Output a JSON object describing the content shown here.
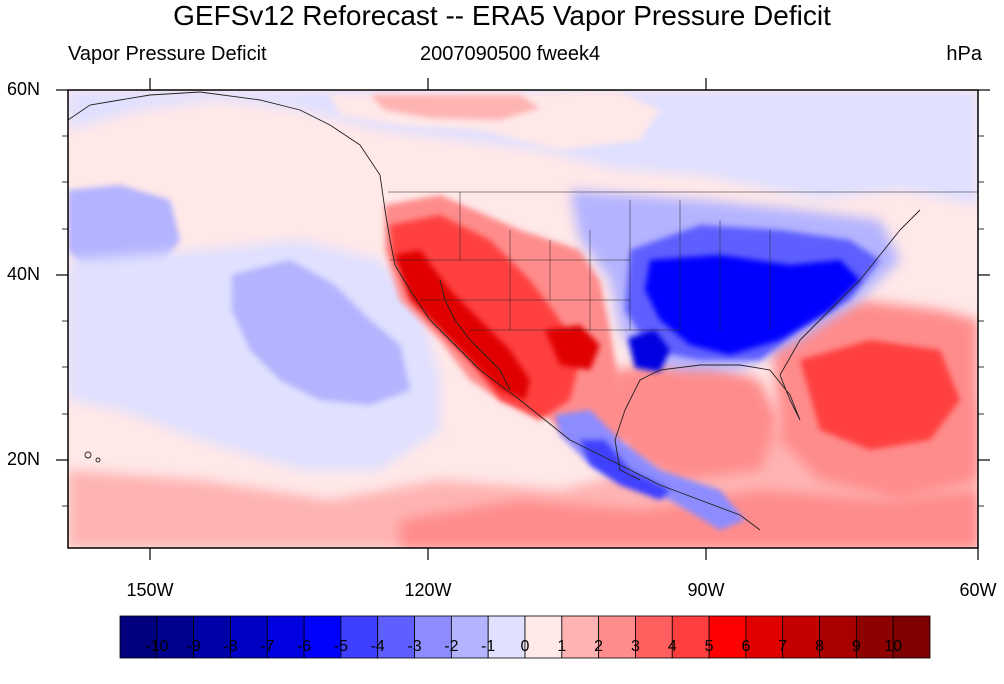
{
  "title": "GEFSv12 Reforecast -- ERA5 Vapor Pressure Deficit",
  "subtitle_left": "Vapor Pressure Deficit",
  "subtitle_center": "2007090500 fweek4",
  "subtitle_right": "hPa",
  "lat_labels": [
    "60N",
    "40N",
    "20N"
  ],
  "lon_labels": [
    "150W",
    "120W",
    "90W",
    "60W"
  ],
  "colorbar": {
    "labels": [
      "-10",
      "-9",
      "-8",
      "-7",
      "-6",
      "-5",
      "-4",
      "-3",
      "-2",
      "-1",
      "0",
      "1",
      "2",
      "3",
      "4",
      "5",
      "6",
      "7",
      "8",
      "9",
      "10"
    ],
    "colors": [
      "#00007f",
      "#00008f",
      "#0000a8",
      "#0000c4",
      "#0000e0",
      "#0000ff",
      "#3f3fff",
      "#5f5fff",
      "#8c8cff",
      "#b3b3ff",
      "#e0e0ff",
      "#ffe8e8",
      "#ffb3b3",
      "#ff8c8c",
      "#ff5f5f",
      "#ff3f3f",
      "#ff0000",
      "#e00000",
      "#c40000",
      "#a80000",
      "#8f0000",
      "#7f0000"
    ]
  }
}
